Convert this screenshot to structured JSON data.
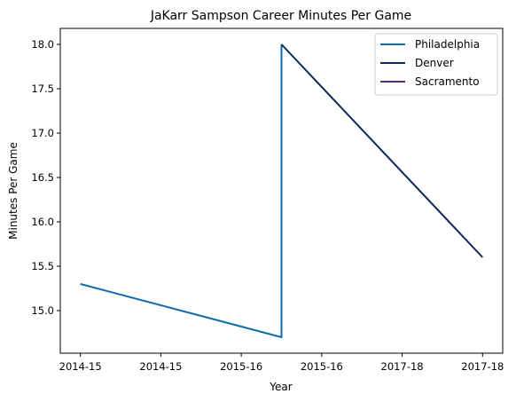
{
  "chart_data": {
    "type": "line",
    "title": "JaKarr Sampson Career Minutes Per Game",
    "xlabel": "Year",
    "ylabel": "Minutes Per Game",
    "x_tick_labels": [
      "2014-15",
      "2014-15",
      "2015-16",
      "2015-16",
      "2017-18",
      "2017-18"
    ],
    "xlim": [
      -0.25,
      5.25
    ],
    "ylim": [
      14.52,
      18.18
    ],
    "y_ticks": [
      15.0,
      15.5,
      16.0,
      16.5,
      17.0,
      17.5,
      18.0
    ],
    "y_tick_labels": [
      "15.0",
      "15.5",
      "16.0",
      "16.5",
      "17.0",
      "17.5",
      "18.0"
    ],
    "grid": false,
    "legend_position": "top-right",
    "series": [
      {
        "name": "Philadelphia",
        "color": "#0e6bb0",
        "x": [
          0,
          2.5,
          2.5
        ],
        "y": [
          15.3,
          14.7,
          18.0
        ]
      },
      {
        "name": "Denver",
        "color": "#0d2a5a",
        "x": [
          2.5,
          5.0
        ],
        "y": [
          18.0,
          15.6
        ]
      },
      {
        "name": "Sacramento",
        "color": "#5a2d82",
        "x": [],
        "y": []
      }
    ]
  }
}
